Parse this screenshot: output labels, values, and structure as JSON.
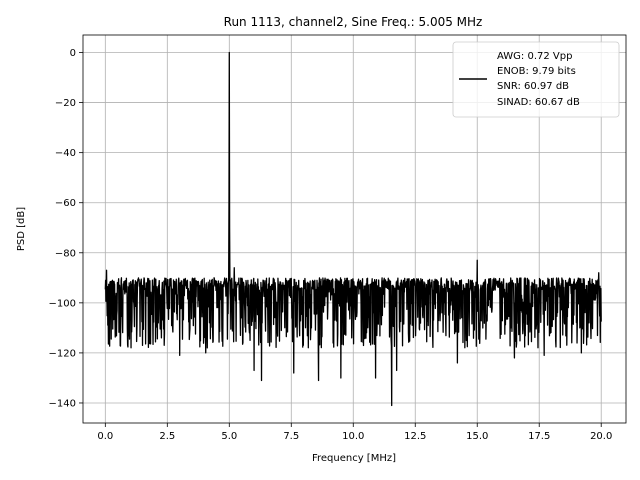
{
  "chart_data": {
    "type": "line",
    "title": "Run 1113, channel2, Sine Freq.: 5.005 MHz",
    "xlabel": "Frequency [MHz]",
    "ylabel": "PSD [dB]",
    "xlim": [
      -0.9,
      21.0
    ],
    "ylim": [
      -148,
      7
    ],
    "xticks": [
      0.0,
      2.5,
      5.0,
      7.5,
      10.0,
      12.5,
      15.0,
      17.5,
      20.0
    ],
    "xtick_labels": [
      "0.0",
      "2.5",
      "5.0",
      "7.5",
      "10.0",
      "12.5",
      "15.0",
      "17.5",
      "20.0"
    ],
    "yticks": [
      0,
      -20,
      -40,
      -60,
      -80,
      -100,
      -120,
      -140
    ],
    "ytick_labels": [
      "0",
      "−20",
      "−40",
      "−60",
      "−80",
      "−100",
      "−120",
      "−140"
    ],
    "grid": true,
    "legend_position": "top-right",
    "legend_lines": [
      "AWG: 0.72 Vpp",
      "ENOB: 9.79 bits",
      "SNR: 60.97 dB",
      "SINAD: 60.67 dB"
    ],
    "line_color": "#000000",
    "series": [
      {
        "noise_floor_db": -100,
        "noise_band_db": [
          -110,
          -90
        ],
        "x_range": [
          0.0,
          20.0
        ],
        "peaks": [
          {
            "x": 5.005,
            "y": 0
          },
          {
            "x": 15.0,
            "y": -83
          },
          {
            "x": 0.05,
            "y": -87
          },
          {
            "x": 19.9,
            "y": -88
          }
        ],
        "spurs": [
          {
            "x": 5.0,
            "y": -75
          },
          {
            "x": 5.2,
            "y": -86
          },
          {
            "x": 15.0,
            "y": -78
          },
          {
            "x": 6.3,
            "y": -131
          },
          {
            "x": 6.0,
            "y": -127
          },
          {
            "x": 7.6,
            "y": -128
          },
          {
            "x": 8.6,
            "y": -131
          },
          {
            "x": 9.5,
            "y": -130
          },
          {
            "x": 10.9,
            "y": -130
          },
          {
            "x": 11.55,
            "y": -141
          },
          {
            "x": 11.75,
            "y": -127
          },
          {
            "x": 14.2,
            "y": -124
          },
          {
            "x": 3.0,
            "y": -121
          },
          {
            "x": 4.05,
            "y": -120
          },
          {
            "x": 16.5,
            "y": -122
          },
          {
            "x": 17.7,
            "y": -121
          },
          {
            "x": 19.2,
            "y": -120
          },
          {
            "x": 1.5,
            "y": -117
          }
        ]
      }
    ]
  }
}
